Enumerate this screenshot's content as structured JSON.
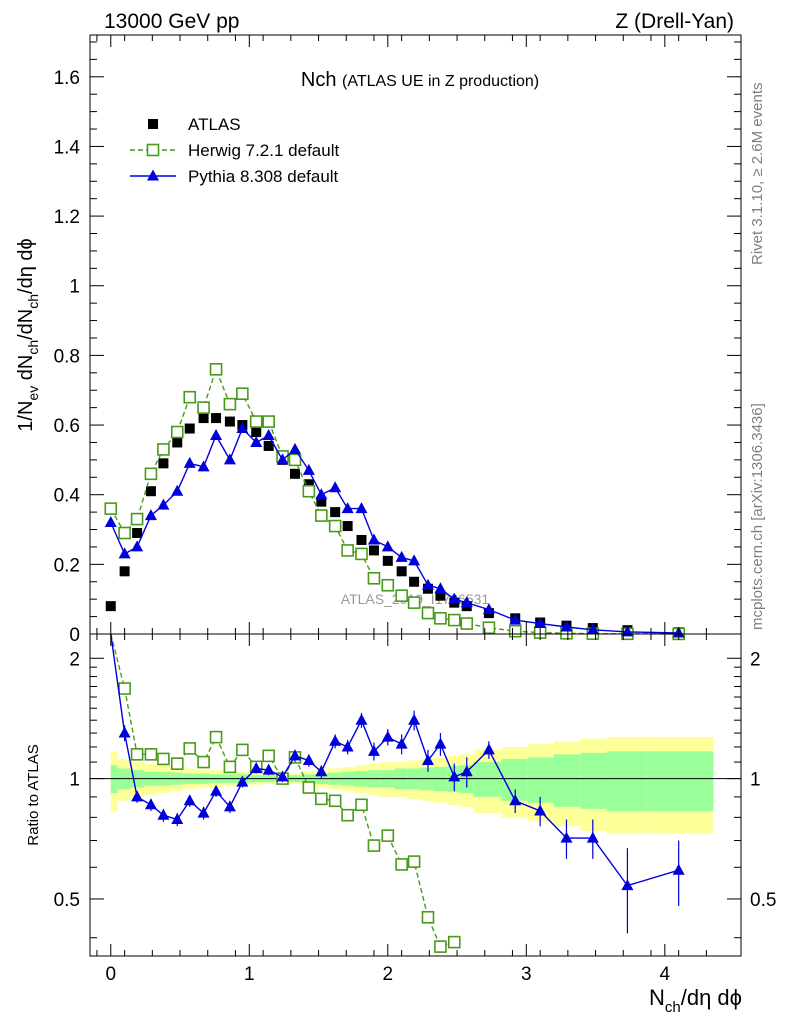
{
  "header": {
    "left": "13000 GeV pp",
    "right": "Z (Drell-Yan)"
  },
  "side_labels": {
    "rivet": "Rivet 3.1.10, ≥ 2.6M events",
    "mcplots": "mcplots.cern.ch [arXiv:1306.3436]"
  },
  "watermark": "ATLAS_2019_I1736531",
  "chart_data": {
    "type": "scatter",
    "title": "Nch",
    "subtitle": "(ATLAS UE in Z production)",
    "xlabel_main": "N",
    "xlabel_sub": "ch",
    "xlabel_rest": "/dη dϕ",
    "ylabel_prefix": "1/N",
    "ylabel_sub1": "ev",
    "ylabel_mid": " dN",
    "ylabel_sub2": "ch",
    "ylabel_rest": "/dN",
    "ylabel_sub3": "ch",
    "ylabel_end": "/dη dϕ",
    "ratio_ylabel": "Ratio to ATLAS",
    "xlim": [
      -0.15,
      4.55
    ],
    "ylim": [
      0,
      1.72
    ],
    "ratio_ylim": [
      0.36,
      2.3
    ],
    "x_ticks": [
      "0",
      "1",
      "2",
      "3",
      "4"
    ],
    "y_ticks": [
      "0",
      "0.2",
      "0.4",
      "0.6",
      "0.8",
      "1",
      "1.2",
      "1.4",
      "1.6"
    ],
    "ratio_ticks": [
      "0.5",
      "1",
      "2"
    ],
    "legend_position": "top-left",
    "series": [
      {
        "name": "ATLAS",
        "color": "#000000",
        "marker": "filled-square",
        "x": [
          0.0,
          0.1,
          0.19,
          0.29,
          0.38,
          0.48,
          0.57,
          0.67,
          0.76,
          0.86,
          0.95,
          1.05,
          1.14,
          1.24,
          1.33,
          1.43,
          1.52,
          1.62,
          1.71,
          1.81,
          1.9,
          2.0,
          2.1,
          2.19,
          2.29,
          2.38,
          2.48,
          2.57,
          2.73,
          2.92,
          3.1,
          3.29,
          3.48,
          3.73,
          4.1
        ],
        "y": [
          0.08,
          0.18,
          0.29,
          0.41,
          0.49,
          0.55,
          0.59,
          0.62,
          0.62,
          0.61,
          0.6,
          0.58,
          0.54,
          0.5,
          0.46,
          0.43,
          0.38,
          0.35,
          0.31,
          0.27,
          0.24,
          0.21,
          0.18,
          0.15,
          0.13,
          0.11,
          0.09,
          0.08,
          0.06,
          0.045,
          0.033,
          0.024,
          0.017,
          0.011,
          0.005
        ]
      },
      {
        "name": "Herwig 7.2.1 default",
        "color": "#4a9a1a",
        "marker": "open-square",
        "line": "dashed",
        "x": [
          0.0,
          0.1,
          0.19,
          0.29,
          0.38,
          0.48,
          0.57,
          0.67,
          0.76,
          0.86,
          0.95,
          1.05,
          1.14,
          1.24,
          1.33,
          1.43,
          1.52,
          1.62,
          1.71,
          1.81,
          1.9,
          2.0,
          2.1,
          2.19,
          2.29,
          2.38,
          2.48,
          2.57,
          2.73,
          2.92,
          3.1,
          3.29,
          3.48,
          3.73,
          4.1
        ],
        "y": [
          0.36,
          0.29,
          0.33,
          0.46,
          0.53,
          0.58,
          0.68,
          0.65,
          0.76,
          0.66,
          0.69,
          0.61,
          0.61,
          0.51,
          0.5,
          0.41,
          0.34,
          0.31,
          0.24,
          0.23,
          0.16,
          0.14,
          0.11,
          0.09,
          0.06,
          0.045,
          0.04,
          0.03,
          0.018,
          0.008,
          0.004,
          0.002,
          0.001,
          0.0005,
          0.0002
        ],
        "ratio_x": [
          0.1,
          0.19,
          0.29,
          0.38,
          0.48,
          0.57,
          0.67,
          0.76,
          0.86,
          0.95,
          1.05,
          1.14,
          1.24,
          1.33,
          1.43,
          1.52,
          1.62,
          1.71,
          1.81,
          1.9,
          2.0,
          2.1,
          2.19,
          2.29,
          2.38,
          2.48
        ],
        "ratio": [
          1.68,
          1.15,
          1.15,
          1.12,
          1.09,
          1.19,
          1.1,
          1.27,
          1.07,
          1.18,
          1.07,
          1.14,
          1.0,
          1.13,
          0.95,
          0.89,
          0.88,
          0.81,
          0.86,
          0.68,
          0.72,
          0.61,
          0.62,
          0.45,
          0.38,
          0.39
        ]
      },
      {
        "name": "Pythia 8.308 default",
        "color": "#0000dd",
        "marker": "filled-triangle",
        "line": "solid",
        "x": [
          0.0,
          0.1,
          0.19,
          0.29,
          0.38,
          0.48,
          0.57,
          0.67,
          0.76,
          0.86,
          0.95,
          1.05,
          1.14,
          1.24,
          1.33,
          1.43,
          1.52,
          1.62,
          1.71,
          1.81,
          1.9,
          2.0,
          2.1,
          2.19,
          2.29,
          2.38,
          2.48,
          2.57,
          2.73,
          2.92,
          3.1,
          3.29,
          3.48,
          3.73,
          4.1
        ],
        "y": [
          0.32,
          0.23,
          0.25,
          0.34,
          0.37,
          0.41,
          0.49,
          0.48,
          0.57,
          0.5,
          0.59,
          0.55,
          0.57,
          0.5,
          0.53,
          0.47,
          0.4,
          0.42,
          0.36,
          0.36,
          0.27,
          0.25,
          0.22,
          0.21,
          0.14,
          0.13,
          0.1,
          0.09,
          0.07,
          0.04,
          0.03,
          0.02,
          0.012,
          0.006,
          0.003
        ],
        "ratio_x": [
          0.1,
          0.19,
          0.29,
          0.38,
          0.48,
          0.57,
          0.67,
          0.76,
          0.86,
          0.95,
          1.05,
          1.14,
          1.24,
          1.33,
          1.43,
          1.52,
          1.62,
          1.71,
          1.81,
          1.9,
          2.0,
          2.1,
          2.19,
          2.29,
          2.38,
          2.48,
          2.57,
          2.73,
          2.92,
          3.1,
          3.29,
          3.48,
          3.73,
          4.1
        ],
        "ratio": [
          1.3,
          0.9,
          0.86,
          0.81,
          0.79,
          0.88,
          0.82,
          0.93,
          0.85,
          0.98,
          1.06,
          1.05,
          1.01,
          1.14,
          1.11,
          1.04,
          1.24,
          1.2,
          1.4,
          1.17,
          1.27,
          1.22,
          1.4,
          1.11,
          1.22,
          1.01,
          1.04,
          1.18,
          0.88,
          0.83,
          0.71,
          0.71,
          0.54,
          0.59
        ],
        "ratio_err": [
          0.06,
          0.03,
          0.03,
          0.03,
          0.03,
          0.03,
          0.03,
          0.03,
          0.03,
          0.03,
          0.03,
          0.03,
          0.03,
          0.04,
          0.04,
          0.04,
          0.05,
          0.05,
          0.06,
          0.06,
          0.06,
          0.07,
          0.08,
          0.07,
          0.08,
          0.08,
          0.09,
          0.06,
          0.06,
          0.07,
          0.08,
          0.08,
          0.13,
          0.11
        ]
      }
    ],
    "uncertainty_bands": {
      "x_edges": [
        0.0,
        0.05,
        0.14,
        0.24,
        0.33,
        0.43,
        0.52,
        0.62,
        0.71,
        0.81,
        0.9,
        1.0,
        1.1,
        1.19,
        1.29,
        1.38,
        1.48,
        1.57,
        1.67,
        1.76,
        1.86,
        1.95,
        2.05,
        2.14,
        2.24,
        2.33,
        2.43,
        2.52,
        2.62,
        2.82,
        3.01,
        3.2,
        3.39,
        3.58,
        3.87,
        4.35
      ],
      "green_half": [
        0.08,
        0.06,
        0.05,
        0.04,
        0.04,
        0.035,
        0.03,
        0.03,
        0.025,
        0.025,
        0.025,
        0.02,
        0.02,
        0.02,
        0.02,
        0.025,
        0.03,
        0.035,
        0.04,
        0.045,
        0.05,
        0.05,
        0.06,
        0.06,
        0.065,
        0.07,
        0.075,
        0.08,
        0.1,
        0.12,
        0.13,
        0.15,
        0.16,
        0.17,
        0.17
      ],
      "yellow_half": [
        0.17,
        0.12,
        0.1,
        0.09,
        0.08,
        0.07,
        0.06,
        0.05,
        0.05,
        0.04,
        0.04,
        0.035,
        0.03,
        0.03,
        0.03,
        0.04,
        0.05,
        0.06,
        0.07,
        0.08,
        0.09,
        0.1,
        0.1,
        0.11,
        0.12,
        0.13,
        0.14,
        0.15,
        0.18,
        0.2,
        0.22,
        0.24,
        0.26,
        0.27,
        0.27
      ]
    }
  }
}
